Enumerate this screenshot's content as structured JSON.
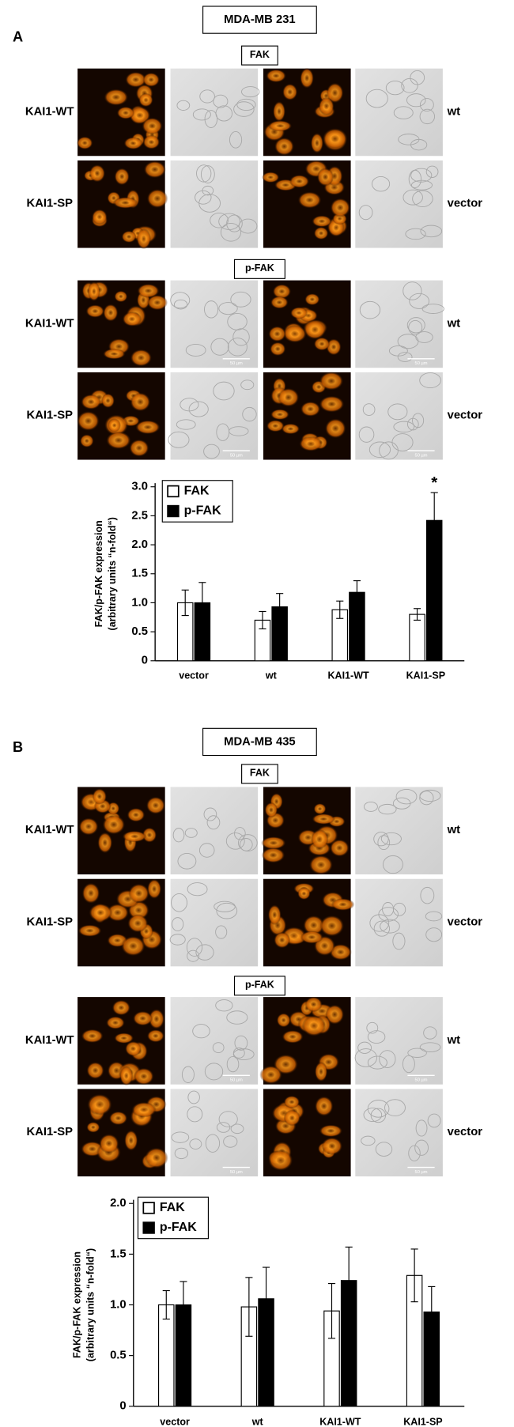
{
  "panels": [
    {
      "letter": "A",
      "cell_line": "MDA-MB 231",
      "sections": [
        {
          "label": "FAK",
          "rows": [
            {
              "left": "KAI1-WT",
              "right": "wt"
            },
            {
              "left": "KAI1-SP",
              "right": "vector"
            }
          ]
        },
        {
          "label": "p-FAK",
          "rows": [
            {
              "left": "KAI1-WT",
              "right": "wt"
            },
            {
              "left": "KAI1-SP",
              "right": "vector"
            }
          ],
          "scale_bar": "50 µm"
        }
      ]
    },
    {
      "letter": "B",
      "cell_line": "MDA-MB 435",
      "sections": [
        {
          "label": "FAK",
          "rows": [
            {
              "left": "KAI1-WT",
              "right": "wt"
            },
            {
              "left": "KAI1-SP",
              "right": "vector"
            }
          ]
        },
        {
          "label": "p-FAK",
          "rows": [
            {
              "left": "KAI1-WT",
              "right": "wt"
            },
            {
              "left": "KAI1-SP",
              "right": "vector"
            }
          ],
          "scale_bar": "50 µm"
        }
      ]
    }
  ],
  "chart_data": [
    {
      "type": "bar",
      "ylabel": [
        "FAK/p-FAK expression",
        "(arbitrary units “n-fold“)"
      ],
      "categories": [
        "vector",
        "wt",
        "KAI1-WT",
        "KAI1-SP"
      ],
      "series": [
        {
          "name": "FAK",
          "color": "#ffffff",
          "values": [
            1.0,
            0.7,
            0.88,
            0.8
          ],
          "errors": [
            0.22,
            0.15,
            0.15,
            0.1
          ]
        },
        {
          "name": "p-FAK",
          "color": "#000000",
          "values": [
            1.0,
            0.93,
            1.18,
            2.42
          ],
          "errors": [
            0.35,
            0.23,
            0.2,
            0.48
          ]
        }
      ],
      "ylim": [
        0,
        3
      ],
      "yticks": [
        0,
        0.5,
        {
          "value": 1,
          "label": "1.0"
        },
        1.5,
        {
          "value": 2,
          "label": "2.0"
        },
        2.5,
        {
          "value": 3,
          "label": "3.0"
        }
      ],
      "annotations": [
        "*"
      ]
    },
    {
      "type": "bar",
      "ylabel": [
        "FAK/p-FAK expression",
        "(arbitrary units “n-fold“)"
      ],
      "categories": [
        "vector",
        "wt",
        "KAI1-WT",
        "KAI1-SP"
      ],
      "series": [
        {
          "name": "FAK",
          "color": "#ffffff",
          "values": [
            1.0,
            0.98,
            0.94,
            1.29
          ],
          "errors": [
            0.14,
            0.29,
            0.27,
            0.26
          ]
        },
        {
          "name": "p-FAK",
          "color": "#000000",
          "values": [
            1.0,
            1.06,
            1.24,
            0.93
          ],
          "errors": [
            0.23,
            0.31,
            0.33,
            0.25
          ]
        }
      ],
      "ylim": [
        0,
        2
      ],
      "yticks": [
        0,
        0.5,
        {
          "value": 1,
          "label": "1.0"
        },
        1.5,
        {
          "value": 2,
          "label": "2.0"
        }
      ]
    }
  ]
}
